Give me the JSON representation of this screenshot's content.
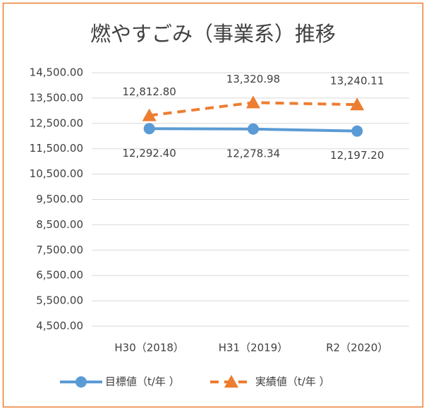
{
  "chart_data": {
    "type": "line",
    "title": "燃やすごみ（事業系）推移",
    "categories": [
      "H30（2018）",
      "H31（2019）",
      "R2（2020）"
    ],
    "series": [
      {
        "name": "目標値（t/年 ）",
        "color": "#5b9bd5",
        "marker": "circle",
        "dashed": false,
        "values": [
          12292.4,
          12278.34,
          12197.2
        ],
        "value_labels": [
          "12,292.40",
          "12,278.34",
          "12,197.20"
        ],
        "label_position": "below"
      },
      {
        "name": "実績値（t/年 ）",
        "color": "#ed7d31",
        "marker": "triangle",
        "dashed": true,
        "values": [
          12812.8,
          13320.98,
          13240.11
        ],
        "value_labels": [
          "12,812.80",
          "13,320.98",
          "13,240.11"
        ],
        "label_position": "above"
      }
    ],
    "ylim": [
      4500,
      14500
    ],
    "yticks": [
      {
        "value": 4500,
        "label": "4,500.00"
      },
      {
        "value": 5500,
        "label": "5,500.00"
      },
      {
        "value": 6500,
        "label": "6,500.00"
      },
      {
        "value": 7500,
        "label": "7,500.00"
      },
      {
        "value": 8500,
        "label": "8,500.00"
      },
      {
        "value": 9500,
        "label": "9,500.00"
      },
      {
        "value": 10500,
        "label": "10,500.00"
      },
      {
        "value": 11500,
        "label": "11,500.00"
      },
      {
        "value": 12500,
        "label": "12,500.00"
      },
      {
        "value": 13500,
        "label": "13,500.00"
      },
      {
        "value": 14500,
        "label": "14,500.00"
      }
    ],
    "grid": true,
    "legend": "bottom"
  }
}
